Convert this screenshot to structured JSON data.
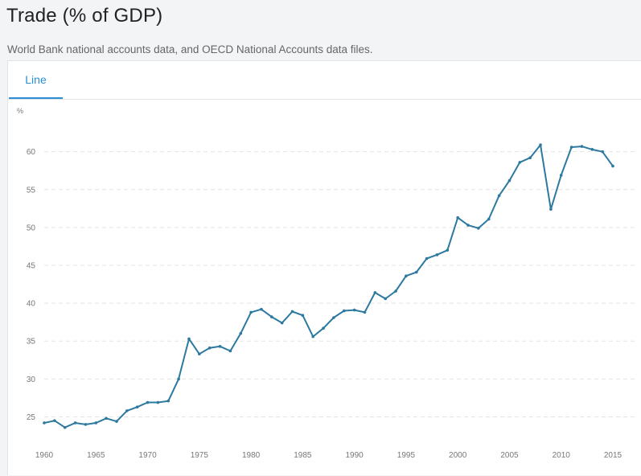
{
  "page": {
    "title": "Trade (% of GDP)",
    "source": "World Bank national accounts data, and OECD National Accounts data files."
  },
  "tabs": [
    {
      "label": "Line",
      "active": true
    }
  ],
  "colors": {
    "line": "#2d79a0",
    "tab_active": "#2b8ed6",
    "grid": "#e4e4e4",
    "axis_text": "#777777"
  },
  "chart_data": {
    "type": "line",
    "ylabel": "%",
    "xlim": [
      1960,
      2015
    ],
    "ylim": [
      22.5,
      64
    ],
    "grid": "horizontal-dashed",
    "yticks": [
      25,
      30,
      35,
      40,
      45,
      50,
      55,
      60
    ],
    "xticks": [
      1960,
      1965,
      1970,
      1975,
      1980,
      1985,
      1990,
      1995,
      2000,
      2005,
      2010,
      2015
    ],
    "series": [
      {
        "x": [
          1960,
          1961,
          1962,
          1963,
          1964,
          1965,
          1966,
          1967,
          1968,
          1969,
          1970,
          1971,
          1972,
          1973,
          1974,
          1975,
          1976,
          1977,
          1978,
          1979,
          1980,
          1981,
          1982,
          1983,
          1984,
          1985,
          1986,
          1987,
          1988,
          1989,
          1990,
          1991,
          1992,
          1993,
          1994,
          1995,
          1996,
          1997,
          1998,
          1999,
          2000,
          2001,
          2002,
          2003,
          2004,
          2005,
          2006,
          2007,
          2008,
          2009,
          2010,
          2011,
          2012,
          2013,
          2014,
          2015
        ],
        "y": [
          24.2,
          24.5,
          23.6,
          24.2,
          24.0,
          24.2,
          24.8,
          24.4,
          25.8,
          26.3,
          26.9,
          26.9,
          27.1,
          30.0,
          35.3,
          33.3,
          34.1,
          34.3,
          33.7,
          36.0,
          38.8,
          39.2,
          38.2,
          37.4,
          38.9,
          38.4,
          35.6,
          36.7,
          38.1,
          39.0,
          39.1,
          38.8,
          41.4,
          40.6,
          41.6,
          43.6,
          44.1,
          45.9,
          46.4,
          47.0,
          51.3,
          50.3,
          49.9,
          51.1,
          54.2,
          56.2,
          58.6,
          59.2,
          60.9,
          52.4,
          56.9,
          60.6,
          60.7,
          60.3,
          60.0,
          58.1
        ]
      }
    ]
  }
}
